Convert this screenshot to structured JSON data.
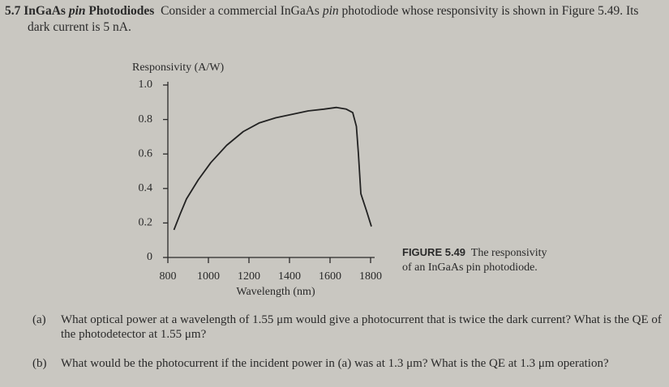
{
  "problem": {
    "number": "5.7",
    "title_parts": [
      "InGaAs",
      "pin",
      "Photodiodes"
    ],
    "intro_parts": [
      "Consider a commercial InGaAs",
      "pin",
      "photodiode whose responsivity is shown in Figure 5.49. Its dark current is 5 nA."
    ]
  },
  "chart_data": {
    "type": "line",
    "ylabel": "Responsivity (A/W)",
    "xlabel": "Wavelength (nm)",
    "x": [
      830,
      860,
      892,
      950,
      1012,
      1090,
      1172,
      1250,
      1332,
      1412,
      1492,
      1570,
      1632,
      1680,
      1712,
      1730,
      1740,
      1752,
      1780,
      1804
    ],
    "series": [
      {
        "name": "Responsivity",
        "color": "#222222",
        "values": [
          0.16,
          0.25,
          0.34,
          0.45,
          0.55,
          0.65,
          0.73,
          0.78,
          0.81,
          0.83,
          0.85,
          0.86,
          0.87,
          0.86,
          0.84,
          0.76,
          0.6,
          0.37,
          0.27,
          0.18
        ]
      }
    ],
    "xlim": [
      800,
      1820
    ],
    "xticks": [
      800,
      1000,
      1200,
      1400,
      1600,
      1800
    ],
    "ylim": [
      0,
      1
    ],
    "yticks": [
      0,
      0.2,
      0.4,
      0.6,
      0.8,
      {
        "value": 1,
        "label": "1.0"
      }
    ]
  },
  "caption": {
    "label": "FIGURE 5.49",
    "text": "The responsivity of an InGaAs pin photodiode."
  },
  "questions": [
    {
      "label": "(a)",
      "text": "What optical power at a wavelength of 1.55 μm would give a photocurrent that is twice the dark current? What is the QE of the photodetector at 1.55 μm?"
    },
    {
      "label": "(b)",
      "text": "What would be the photocurrent if the incident power in (a) was at 1.3 μm? What is the QE at 1.3 μm operation?"
    }
  ]
}
